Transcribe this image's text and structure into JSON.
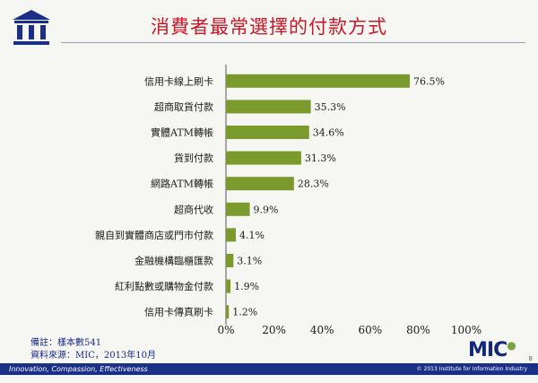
{
  "header": {
    "title": "消費者最常選擇的付款方式"
  },
  "chart_data": {
    "type": "bar",
    "orientation": "horizontal",
    "title": "消費者最常選擇的付款方式",
    "categories": [
      "信用卡線上刷卡",
      "超商取貨付款",
      "實體ATM轉帳",
      "貨到付款",
      "網路ATM轉帳",
      "超商代收",
      "親自到實體商店或門市付款",
      "金融機構臨櫃匯款",
      "紅利點數或購物金付款",
      "信用卡傳真刷卡"
    ],
    "values": [
      76.5,
      35.3,
      34.6,
      31.3,
      28.3,
      9.9,
      4.1,
      3.1,
      1.9,
      1.2
    ],
    "data_labels": [
      "76.5%",
      "35.3%",
      "34.6%",
      "31.3%",
      "28.3%",
      "9.9%",
      "4.1%",
      "3.1%",
      "1.9%",
      "1.2%"
    ],
    "xlim": [
      0,
      100
    ],
    "x_ticks": [
      0,
      20,
      40,
      60,
      80,
      100
    ],
    "x_tick_labels": [
      "0%",
      "20%",
      "40%",
      "60%",
      "80%",
      "100%"
    ],
    "grid": false,
    "legend": "none",
    "bar_color": "#7a9a2e"
  },
  "notes": {
    "sample": "備註：樣本數541",
    "source": "資料來源：MIC，2013年10月"
  },
  "footer": {
    "logo_text": "MIC",
    "slogan": "Innovation, Compassion, Effectiveness",
    "copyright": "© 2013 Institute for Information Industry",
    "page_number": "8"
  },
  "colors": {
    "title": "#c8182a",
    "navy": "#1a2f88",
    "bar": "#7a9a2e"
  },
  "icons": {
    "logo": "institution-pillars-icon"
  }
}
